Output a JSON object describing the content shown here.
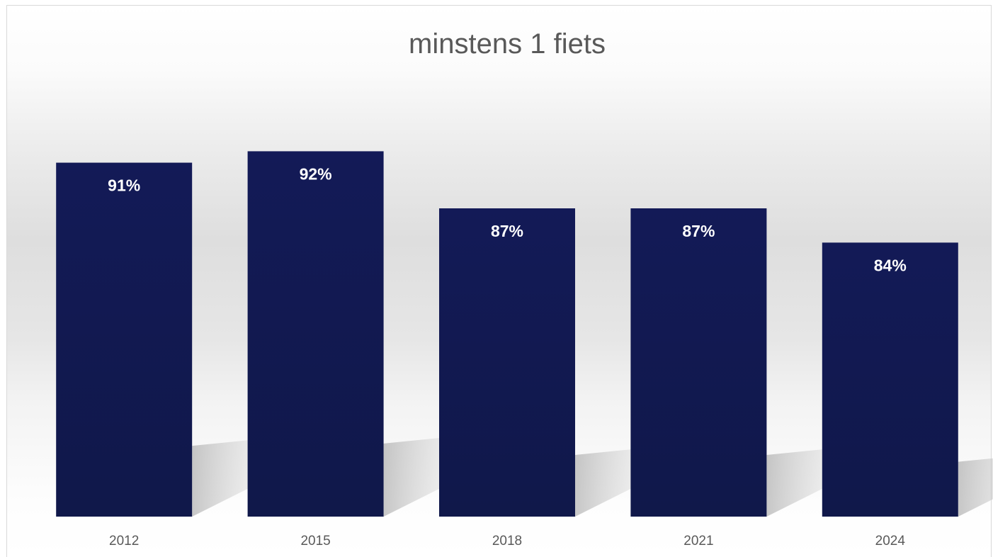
{
  "chart_data": {
    "type": "bar",
    "title": "minstens 1 fiets",
    "categories": [
      "2012",
      "2015",
      "2018",
      "2021",
      "2024"
    ],
    "values": [
      91,
      92,
      87,
      87,
      84
    ],
    "data_labels": [
      "91%",
      "92%",
      "87%",
      "87%",
      "84%"
    ],
    "xlabel": "",
    "ylabel": "",
    "ylim": [
      60,
      96
    ],
    "grid": false,
    "legend": "none",
    "colors": {
      "bar": "#131a57",
      "bar_dark": "#10184a",
      "label": "#ffffff",
      "title": "#595959",
      "tick": "#595959"
    }
  }
}
